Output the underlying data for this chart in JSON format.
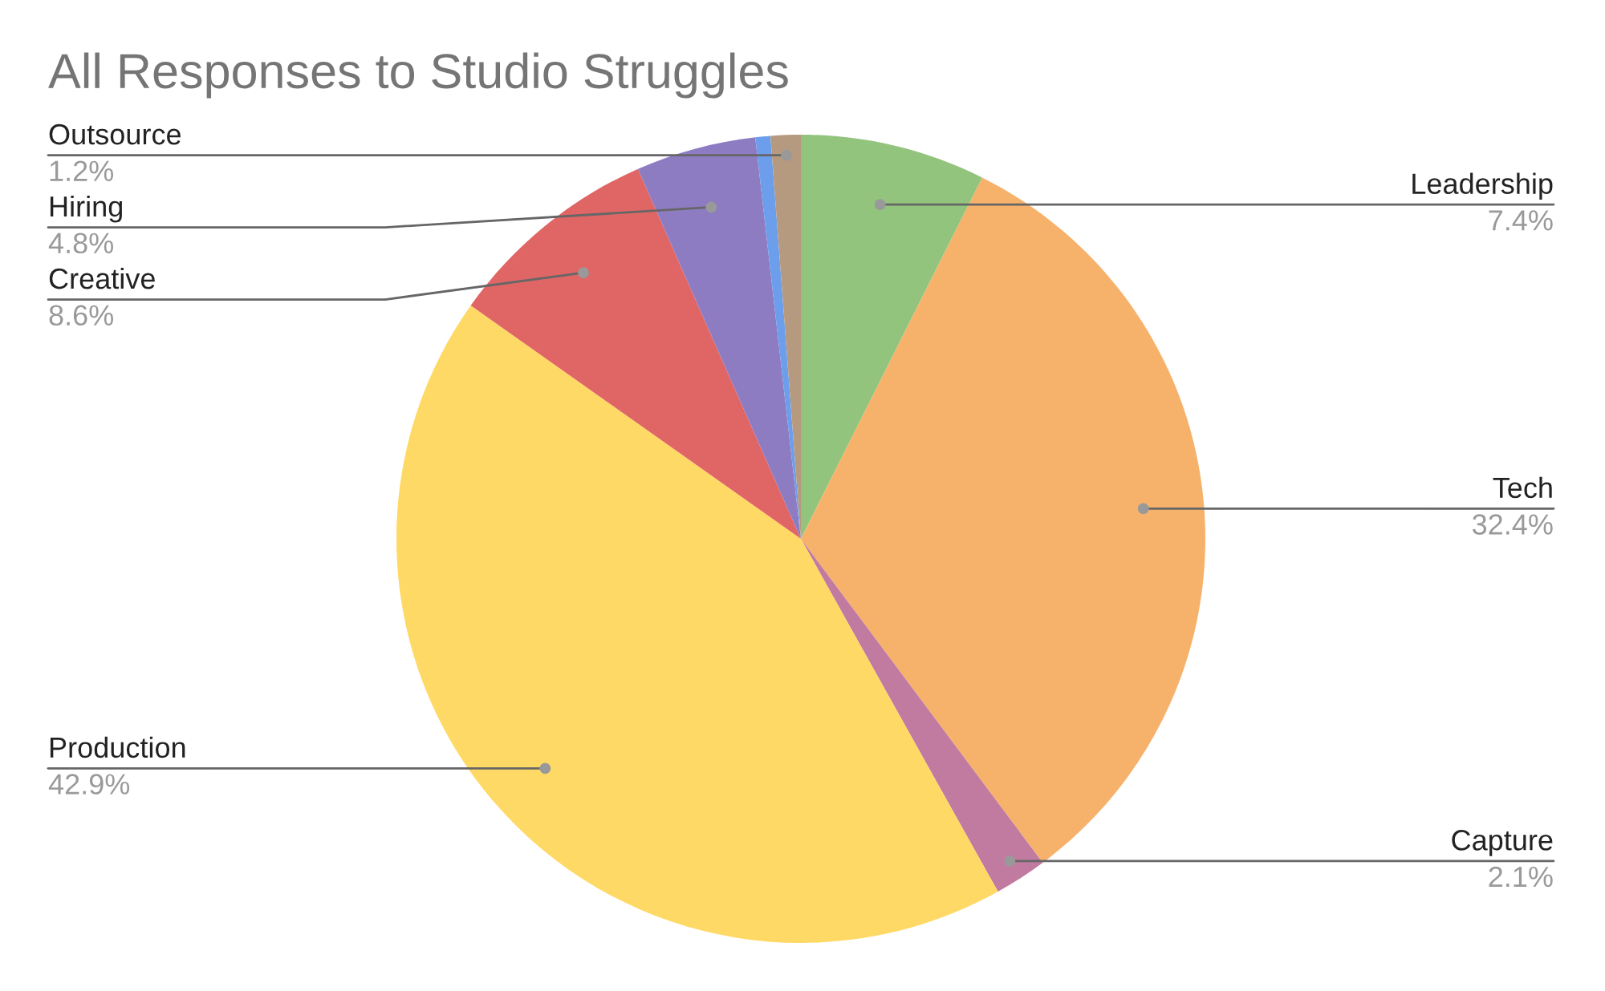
{
  "chart_data": {
    "type": "pie",
    "title": "All Responses to Studio Struggles",
    "categories": [
      "Leadership",
      "Tech",
      "Capture",
      "Production",
      "Creative",
      "Hiring",
      null,
      "Outsource"
    ],
    "values": [
      7.4,
      32.4,
      2.1,
      42.9,
      8.6,
      4.8,
      0.6,
      1.2
    ],
    "value_labels": [
      "7.4%",
      "32.4%",
      "2.1%",
      "42.9%",
      "8.6%",
      "4.8%",
      null,
      "1.2%"
    ],
    "colors": [
      "#93c47d",
      "#f6b26b",
      "#c27ba0",
      "#ffd966",
      "#e06666",
      "#8e7cc3",
      "#6d9eeb",
      "#b59a80"
    ],
    "legend": false
  }
}
